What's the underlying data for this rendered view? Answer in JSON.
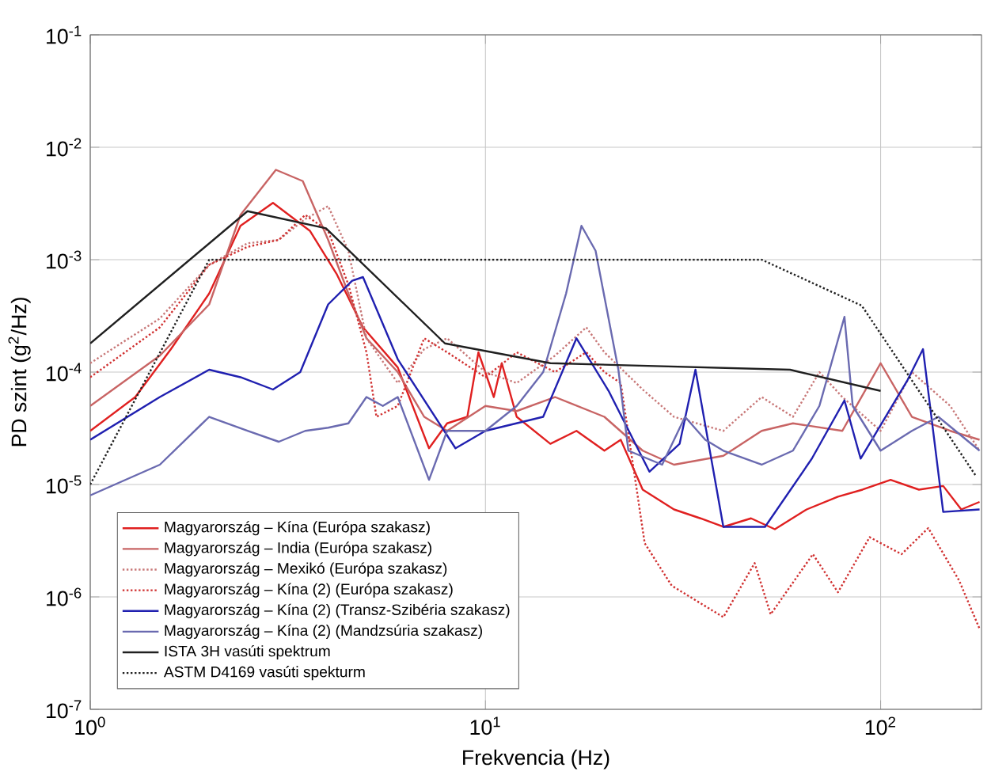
{
  "chart_data": {
    "type": "line",
    "xlabel": "Frekvencia (Hz)",
    "ylabel": "PD szint (g$^{2}$/Hz)",
    "log": "xy",
    "grid": true,
    "legend": "bottom left",
    "marker": "none",
    "xlim": [
      1,
      180
    ],
    "ylim": [
      1e-07,
      0.1
    ],
    "xticks": [
      {
        "value": 1,
        "label": "10$^{0}$"
      },
      {
        "value": 10,
        "label": "10$^{1}$"
      },
      {
        "value": 100,
        "label": "10$^{2}$"
      }
    ],
    "yticks": [
      {
        "value": 1e-07,
        "label": "10$^{-7}$"
      },
      {
        "value": 1e-06,
        "label": "10$^{-6}$"
      },
      {
        "value": 1e-05,
        "label": "10$^{-5}$"
      },
      {
        "value": 0.0001,
        "label": "10$^{-4}$"
      },
      {
        "value": 0.001,
        "label": "10$^{-3}$"
      },
      {
        "value": 0.01,
        "label": "10$^{-2}$"
      },
      {
        "value": 0.1,
        "label": "10$^{-1}$"
      }
    ],
    "series": [
      {
        "name": "Magyarország – Kína (Európa szakasz)",
        "color": "#e02020",
        "line_style": "solid",
        "x": [
          1,
          1.3,
          1.6,
          2,
          2.4,
          2.9,
          3.6,
          4.2,
          4.9,
          6,
          7.2,
          8,
          9,
          9.6,
          10.5,
          11,
          12,
          14.6,
          17,
          20,
          22,
          25,
          30,
          35,
          40,
          47,
          54,
          65,
          78,
          90,
          106,
          125,
          144,
          160,
          178
        ],
        "values": [
          3e-05,
          6e-05,
          0.00016,
          0.0005,
          0.002,
          0.0032,
          0.0018,
          0.00075,
          0.00025,
          0.00011,
          2.1e-05,
          3.5e-05,
          4e-05,
          0.00015,
          6e-05,
          0.00012,
          4e-05,
          2.3e-05,
          3e-05,
          2e-05,
          2.5e-05,
          9e-06,
          6e-06,
          5e-06,
          4.2e-06,
          5e-06,
          4e-06,
          6e-06,
          7.8e-06,
          9e-06,
          1.1e-05,
          9e-06,
          9.7e-06,
          6e-06,
          7e-06
        ]
      },
      {
        "name": "Magyarország – India (Európa szakasz)",
        "color": "#c86464",
        "line_style": "solid",
        "x": [
          1,
          1.5,
          2,
          2.4,
          2.95,
          3.45,
          4,
          4.5,
          5,
          6,
          7,
          8,
          10,
          12,
          15,
          20,
          25,
          30,
          40,
          50,
          60,
          80,
          100,
          120,
          150,
          178
        ],
        "values": [
          5e-05,
          0.00014,
          0.0004,
          0.0025,
          0.0063,
          0.005,
          0.0015,
          0.0005,
          0.0002,
          0.0001,
          4e-05,
          3e-05,
          5e-05,
          4.5e-05,
          6e-05,
          4e-05,
          2e-05,
          1.5e-05,
          1.8e-05,
          3e-05,
          3.5e-05,
          3e-05,
          0.00012,
          4e-05,
          3e-05,
          2.5e-05
        ]
      },
      {
        "name": "Magyarország – Mexikó (Európa szakasz)",
        "color": "#c87878",
        "line_style": "dotted",
        "x": [
          1,
          1.5,
          2,
          2.5,
          3,
          3.5,
          4,
          4.5,
          5,
          6,
          7,
          8,
          10,
          12,
          15,
          18,
          20,
          25,
          30,
          40,
          50,
          60,
          70,
          80,
          100,
          120,
          150,
          178
        ],
        "values": [
          0.00012,
          0.0003,
          0.0009,
          0.0014,
          0.0015,
          0.0023,
          0.003,
          0.0012,
          0.0002,
          8e-05,
          0.00016,
          0.0002,
          0.0001,
          8e-05,
          0.00014,
          0.00025,
          0.00015,
          7e-05,
          4e-05,
          3e-05,
          6e-05,
          4e-05,
          0.0001,
          6e-05,
          3e-05,
          0.0001,
          5e-05,
          2e-05
        ]
      },
      {
        "name": "Magyarország – Kína (2) (Európa szakasz)",
        "color": "#d03030",
        "line_style": "dotted",
        "x": [
          1,
          1.5,
          2,
          2.5,
          3,
          3.5,
          4,
          4.5,
          5,
          5.3,
          6,
          7,
          8,
          10,
          12,
          15,
          18,
          20,
          22,
          25.3,
          29.6,
          40,
          48,
          52.7,
          67.4,
          78,
          93.8,
          113,
          132,
          158,
          178
        ],
        "values": [
          9e-05,
          0.00025,
          0.0009,
          0.0013,
          0.0015,
          0.0025,
          0.0018,
          0.0006,
          0.00015,
          4e-05,
          5e-05,
          0.0002,
          0.00015,
          9e-05,
          0.00015,
          0.0001,
          0.00015,
          0.0001,
          8e-05,
          3e-06,
          1.26e-06,
          6.6e-07,
          2e-06,
          7e-07,
          2.4e-06,
          1.1e-06,
          3.4e-06,
          2.4e-06,
          4.1e-06,
          1.4e-06,
          5.2e-07
        ]
      },
      {
        "name": "Magyarország – Kína (2) (Transz-Szibéria szakasz)",
        "color": "#2020b0",
        "line_style": "solid",
        "x": [
          1,
          1.5,
          2,
          2.4,
          2.9,
          3.4,
          4,
          4.6,
          4.9,
          6,
          8.4,
          10,
          14,
          17,
          20.5,
          26,
          31,
          34,
          40,
          51,
          67,
          81,
          89,
          117,
          128,
          144,
          178
        ],
        "values": [
          2.5e-05,
          6e-05,
          0.000105,
          9e-05,
          7e-05,
          0.0001,
          0.0004,
          0.00065,
          0.0007,
          0.00013,
          2.1e-05,
          3e-05,
          4e-05,
          0.0002,
          6.8e-05,
          1.3e-05,
          2.3e-05,
          0.000105,
          4.2e-06,
          4.2e-06,
          1.7e-05,
          5.6e-05,
          1.7e-05,
          8.5e-05,
          0.00016,
          5.7e-06,
          6e-06
        ]
      },
      {
        "name": "Magyarország – Kína (2) (Mandzsúria szakasz)",
        "color": "#6a6ab0",
        "line_style": "solid",
        "x": [
          1,
          1.5,
          2,
          2.5,
          3,
          3.5,
          4,
          4.5,
          5,
          5.5,
          6,
          7.2,
          8,
          10,
          12,
          14,
          16,
          17.5,
          19,
          21.7,
          23,
          28,
          32,
          36,
          40,
          50,
          60,
          70,
          81,
          85,
          100,
          120,
          140,
          178
        ],
        "values": [
          8e-06,
          1.5e-05,
          4e-05,
          3e-05,
          2.4e-05,
          3e-05,
          3.2e-05,
          3.5e-05,
          6e-05,
          5e-05,
          6e-05,
          1.1e-05,
          3e-05,
          3e-05,
          5e-05,
          0.0001,
          0.0005,
          0.002,
          0.0012,
          0.000105,
          2e-05,
          1.5e-05,
          4e-05,
          2.5e-05,
          2e-05,
          1.5e-05,
          2e-05,
          5e-05,
          0.00031,
          5e-05,
          2e-05,
          3e-05,
          4e-05,
          2e-05
        ]
      },
      {
        "name": "ISTA 3H vasúti spektrum",
        "color": "#202020",
        "line_style": "solid",
        "x": [
          1,
          2.5,
          3.95,
          7.9,
          14.6,
          59,
          100
        ],
        "values": [
          0.00018,
          0.0027,
          0.0019,
          0.00018,
          0.00012,
          0.000105,
          6.8e-05
        ]
      },
      {
        "name": "ASTM D4169 vasúti spekturm",
        "color": "#202020",
        "line_style": "dotted",
        "x": [
          1,
          2,
          50,
          89.6,
          174
        ],
        "values": [
          1e-05,
          0.001,
          0.001,
          0.00039,
          1.2e-05
        ]
      }
    ]
  }
}
